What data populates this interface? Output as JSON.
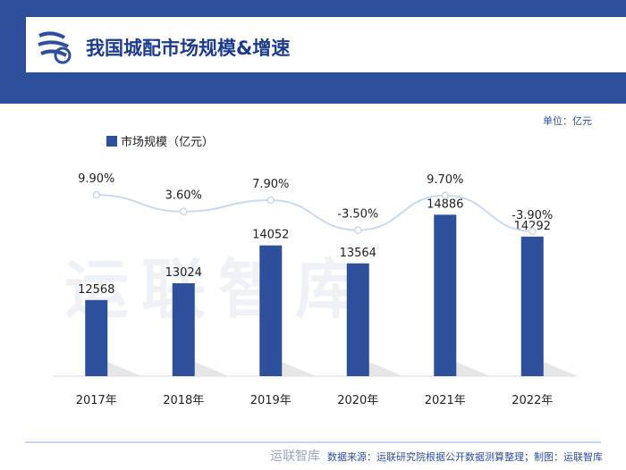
{
  "header": {
    "title": "我国城配市场规模&增速"
  },
  "unit_label": "单位：亿元",
  "watermark": "运联智库",
  "footer": {
    "logo_text": "运联智库",
    "source": "数据来源：运联研究院根据公开数据测算整理；制图：运联智库"
  },
  "colors": {
    "brand_blue": "#2d4f9c",
    "bar_blue": "#2d4f9c",
    "line_light_blue": "#c9daf0"
  },
  "chart_data": {
    "type": "bar",
    "categories": [
      "2017年",
      "2018年",
      "2019年",
      "2020年",
      "2021年",
      "2022年"
    ],
    "series": [
      {
        "name": "市场规模（亿元）",
        "type": "bar",
        "values": [
          12568,
          13024,
          14052,
          13564,
          14886,
          14292
        ]
      },
      {
        "type": "line",
        "values": [
          9.9,
          3.6,
          7.9,
          -3.5,
          9.7,
          -3.9
        ],
        "labels": [
          "9.90%",
          "3.60%",
          "7.90%",
          "-3.50%",
          "9.70%",
          "-3.90%"
        ]
      }
    ],
    "legend": "top-left",
    "grid": false
  }
}
